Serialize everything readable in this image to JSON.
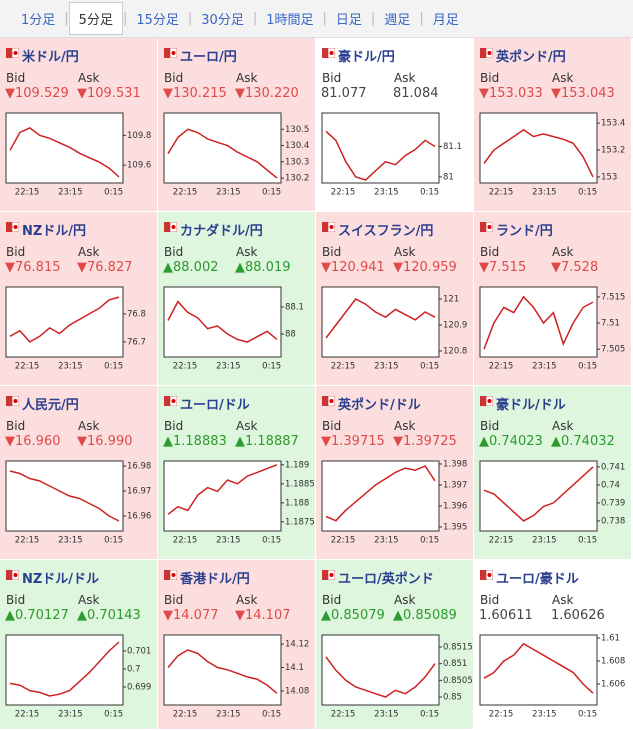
{
  "tabs": [
    "1分足",
    "5分足",
    "15分足",
    "30分足",
    "1時間足",
    "日足",
    "週足",
    "月足"
  ],
  "selected_tab": 1,
  "labels": {
    "bid": "Bid",
    "ask": "Ask"
  },
  "x_labels": [
    "22:15",
    "23:15",
    "0:15"
  ],
  "cells": [
    {
      "title": "米ドル/円",
      "bid": "▼109.529",
      "ask": "▼109.531",
      "trend": "down",
      "chart": {
        "type": "line",
        "ylim": [
          109.48,
          109.95
        ],
        "yticks": [
          109.8,
          109.6
        ],
        "values": [
          109.7,
          109.82,
          109.85,
          109.8,
          109.78,
          109.75,
          109.72,
          109.68,
          109.65,
          109.62,
          109.58,
          109.52
        ]
      }
    },
    {
      "title": "ユーロ/円",
      "bid": "▼130.215",
      "ask": "▼130.220",
      "trend": "down",
      "chart": {
        "type": "line",
        "ylim": [
          130.17,
          130.6
        ],
        "yticks": [
          130.5,
          130.4,
          130.3,
          130.2
        ],
        "values": [
          130.35,
          130.45,
          130.5,
          130.48,
          130.44,
          130.42,
          130.4,
          130.36,
          130.33,
          130.3,
          130.25,
          130.2
        ]
      }
    },
    {
      "title": "豪ドル/円",
      "bid": "81.077",
      "ask": "81.084",
      "trend": "flat",
      "chart": {
        "type": "line",
        "ylim": [
          80.98,
          81.21
        ],
        "yticks": [
          81.1,
          81
        ],
        "values": [
          81.15,
          81.12,
          81.05,
          81.0,
          80.99,
          81.02,
          81.05,
          81.04,
          81.07,
          81.09,
          81.12,
          81.1
        ]
      }
    },
    {
      "title": "英ポンド/円",
      "bid": "▼153.033",
      "ask": "▼153.043",
      "trend": "down",
      "chart": {
        "type": "line",
        "ylim": [
          152.955,
          153.475
        ],
        "yticks": [
          153.4,
          153.2,
          153
        ],
        "values": [
          153.1,
          153.2,
          153.25,
          153.3,
          153.35,
          153.3,
          153.32,
          153.3,
          153.28,
          153.25,
          153.15,
          153.0
        ]
      }
    },
    {
      "title": "NZドル/円",
      "bid": "▼76.815",
      "ask": "▼76.827",
      "trend": "down",
      "chart": {
        "type": "line",
        "ylim": [
          76.646,
          76.896
        ],
        "yticks": [
          76.8,
          76.7
        ],
        "values": [
          76.72,
          76.74,
          76.7,
          76.72,
          76.75,
          76.73,
          76.76,
          76.78,
          76.8,
          76.82,
          76.85,
          76.86
        ]
      }
    },
    {
      "title": "カナダドル/円",
      "bid": "▲88.002",
      "ask": "▲88.019",
      "trend": "up",
      "chart": {
        "type": "line",
        "ylim": [
          87.915,
          88.174
        ],
        "yticks": [
          88.1,
          88
        ],
        "values": [
          88.05,
          88.12,
          88.08,
          88.06,
          88.02,
          88.03,
          88.0,
          87.98,
          87.97,
          87.99,
          88.01,
          87.98
        ]
      }
    },
    {
      "title": "スイスフラン/円",
      "bid": "▼120.941",
      "ask": "▼120.959",
      "trend": "down",
      "chart": {
        "type": "line",
        "ylim": [
          120.777,
          121.046
        ],
        "yticks": [
          121,
          120.9,
          120.8
        ],
        "values": [
          120.85,
          120.9,
          120.95,
          121.0,
          120.98,
          120.95,
          120.93,
          120.96,
          120.94,
          120.92,
          120.95,
          120.93
        ]
      }
    },
    {
      "title": "ランド/円",
      "bid": "▼7.515",
      "ask": "▼7.528",
      "trend": "down",
      "chart": {
        "type": "line",
        "ylim": [
          7.5035,
          7.5169
        ],
        "yticks": [
          7.515,
          7.51,
          7.505
        ],
        "values": [
          7.505,
          7.51,
          7.513,
          7.512,
          7.515,
          7.513,
          7.51,
          7.512,
          7.506,
          7.51,
          7.513,
          7.514
        ]
      }
    },
    {
      "title": "人民元/円",
      "bid": "▼16.960",
      "ask": "▼16.990",
      "trend": "down",
      "chart": {
        "type": "line",
        "ylim": [
          16.954,
          16.982
        ],
        "yticks": [
          16.98,
          16.97,
          16.96
        ],
        "values": [
          16.978,
          16.977,
          16.975,
          16.974,
          16.972,
          16.97,
          16.968,
          16.967,
          16.965,
          16.963,
          16.96,
          16.958
        ]
      }
    },
    {
      "title": "ユーロ/ドル",
      "bid": "▲1.18883",
      "ask": "▲1.18887",
      "trend": "up",
      "chart": {
        "type": "line",
        "ylim": [
          1.18726,
          1.1891
        ],
        "yticks": [
          1.189,
          1.1885,
          1.188,
          1.1875
        ],
        "values": [
          1.1877,
          1.1879,
          1.1878,
          1.1882,
          1.1884,
          1.1883,
          1.1886,
          1.1885,
          1.1887,
          1.1888,
          1.1889,
          1.189
        ]
      }
    },
    {
      "title": "英ポンド/ドル",
      "bid": "▼1.39715",
      "ask": "▼1.39725",
      "trend": "down",
      "chart": {
        "type": "line",
        "ylim": [
          1.39481,
          1.39814
        ],
        "yticks": [
          1.398,
          1.397,
          1.396,
          1.395
        ],
        "values": [
          1.3955,
          1.3953,
          1.3958,
          1.3962,
          1.3966,
          1.397,
          1.3973,
          1.3976,
          1.3978,
          1.3977,
          1.3979,
          1.3972
        ]
      }
    },
    {
      "title": "豪ドル/ドル",
      "bid": "▲0.74023",
      "ask": "▲0.74032",
      "trend": "up",
      "chart": {
        "type": "line",
        "ylim": [
          0.73744,
          0.74133
        ],
        "yticks": [
          0.741,
          0.74,
          0.739,
          0.738
        ],
        "values": [
          0.7397,
          0.7395,
          0.739,
          0.7385,
          0.738,
          0.7383,
          0.7388,
          0.739,
          0.7395,
          0.74,
          0.7405,
          0.741
        ]
      }
    },
    {
      "title": "NZドル/ドル",
      "bid": "▲0.70127",
      "ask": "▲0.70143",
      "trend": "up",
      "chart": {
        "type": "line",
        "ylim": [
          0.698,
          0.70189
        ],
        "yticks": [
          0.701,
          0.7,
          0.699
        ],
        "values": [
          0.6992,
          0.6991,
          0.6988,
          0.6987,
          0.6985,
          0.6986,
          0.6988,
          0.6993,
          0.6998,
          0.7004,
          0.701,
          0.7015
        ]
      }
    },
    {
      "title": "香港ドル/円",
      "bid": "▼14.077",
      "ask": "▼14.107",
      "trend": "down",
      "chart": {
        "type": "line",
        "ylim": [
          14.068,
          14.1277
        ],
        "yticks": [
          14.12,
          14.1,
          14.08
        ],
        "values": [
          14.1,
          14.11,
          14.115,
          14.112,
          14.105,
          14.1,
          14.098,
          14.095,
          14.092,
          14.09,
          14.085,
          14.078
        ]
      }
    },
    {
      "title": "ユーロ/英ポンド",
      "bid": "▲0.85079",
      "ask": "▲0.85089",
      "trend": "up",
      "chart": {
        "type": "line",
        "ylim": [
          0.84976,
          0.85186
        ],
        "yticks": [
          0.8515,
          0.851,
          0.8505,
          0.85
        ],
        "values": [
          0.8512,
          0.8508,
          0.8505,
          0.8503,
          0.8502,
          0.8501,
          0.85,
          0.8502,
          0.8501,
          0.8503,
          0.8506,
          0.851
        ]
      }
    },
    {
      "title": "ユーロ/豪ドル",
      "bid": "1.60611",
      "ask": "1.60626",
      "trend": "flat",
      "chart": {
        "type": "line",
        "ylim": [
          1.60417,
          1.61026
        ],
        "yticks": [
          1.61,
          1.608,
          1.606
        ],
        "values": [
          1.6065,
          1.607,
          1.608,
          1.6085,
          1.6095,
          1.609,
          1.6085,
          1.608,
          1.6075,
          1.607,
          1.606,
          1.6052
        ]
      }
    }
  ]
}
